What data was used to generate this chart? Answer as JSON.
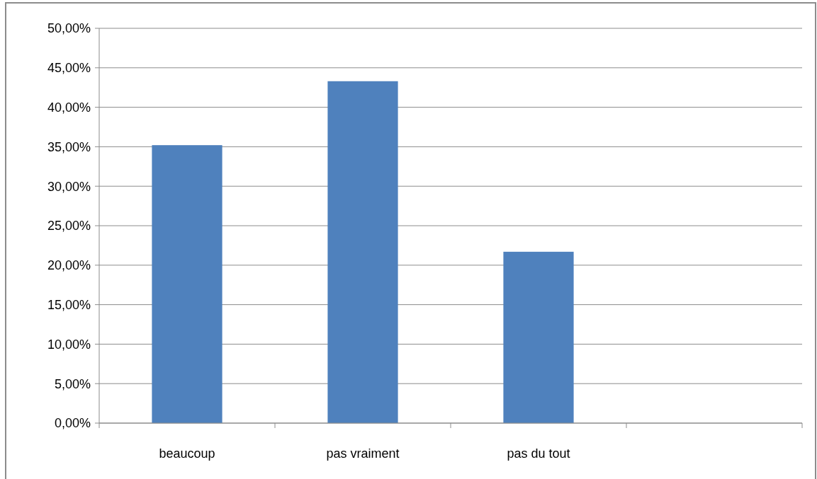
{
  "chart_data": {
    "type": "bar",
    "categories": [
      "beaucoup",
      "pas vraiment",
      "pas du tout",
      null
    ],
    "values": [
      35.2,
      43.3,
      21.7,
      null
    ],
    "color": "#4f81bd",
    "ylim": [
      0,
      50
    ],
    "yticks": [
      {
        "value": 0,
        "label": "0,00%"
      },
      {
        "value": 5,
        "label": "5,00%"
      },
      {
        "value": 10,
        "label": "10,00%"
      },
      {
        "value": 15,
        "label": "15,00%"
      },
      {
        "value": 20,
        "label": "20,00%"
      },
      {
        "value": 25,
        "label": "25,00%"
      },
      {
        "value": 30,
        "label": "30,00%"
      },
      {
        "value": 35,
        "label": "35,00%"
      },
      {
        "value": 40,
        "label": "40,00%"
      },
      {
        "value": 45,
        "label": "45,00%"
      },
      {
        "value": 50,
        "label": "50,00%"
      }
    ],
    "grid": "y"
  }
}
